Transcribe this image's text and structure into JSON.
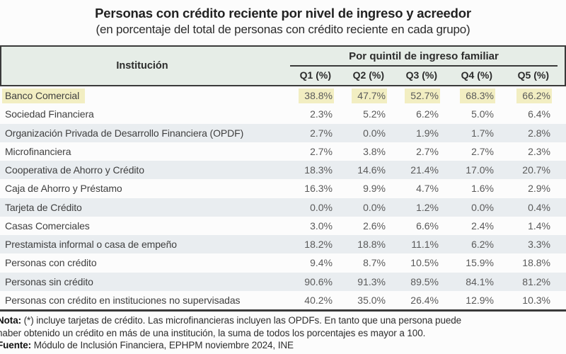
{
  "title": "Personas con crédito reciente por nivel de ingreso y acreedor",
  "subtitle": "(en porcentaje del total de personas con crédito reciente en cada grupo)",
  "table": {
    "institution_header": "Institución",
    "group_header": "Por quintil de ingreso familiar",
    "columns": [
      "Q1 (%)",
      "Q2 (%)",
      "Q3 (%)",
      "Q4 (%)",
      "Q5 (%)"
    ],
    "rows": [
      {
        "label": "Banco Comercial",
        "values": [
          "38.8%",
          "47.7%",
          "52.7%",
          "68.3%",
          "66.2%"
        ],
        "highlighted": true,
        "striped": false
      },
      {
        "label": "Sociedad Financiera",
        "values": [
          "2.3%",
          "5.2%",
          "6.2%",
          "5.0%",
          "6.4%"
        ],
        "highlighted": false,
        "striped": false
      },
      {
        "label": "Organización Privada de Desarrollo Financiera (OPDF)",
        "values": [
          "2.7%",
          "0.0%",
          "1.9%",
          "1.7%",
          "2.8%"
        ],
        "highlighted": false,
        "striped": true
      },
      {
        "label": "Microfinanciera",
        "values": [
          "2.7%",
          "3.8%",
          "2.7%",
          "2.7%",
          "2.3%"
        ],
        "highlighted": false,
        "striped": false
      },
      {
        "label": "Cooperativa de Ahorro y Crédito",
        "values": [
          "18.3%",
          "14.6%",
          "21.4%",
          "17.0%",
          "20.7%"
        ],
        "highlighted": false,
        "striped": true
      },
      {
        "label": "Caja de Ahorro y Préstamo",
        "values": [
          "16.3%",
          "9.9%",
          "4.7%",
          "1.6%",
          "2.9%"
        ],
        "highlighted": false,
        "striped": false
      },
      {
        "label": "Tarjeta de Crédito",
        "values": [
          "0.0%",
          "0.0%",
          "1.2%",
          "0.0%",
          "0.4%"
        ],
        "highlighted": false,
        "striped": true
      },
      {
        "label": "Casas Comerciales",
        "values": [
          "3.0%",
          "2.6%",
          "6.6%",
          "2.4%",
          "1.4%"
        ],
        "highlighted": false,
        "striped": false
      },
      {
        "label": "Prestamista informal o casa de empeño",
        "values": [
          "18.2%",
          "18.8%",
          "11.1%",
          "6.2%",
          "3.3%"
        ],
        "highlighted": false,
        "striped": true
      },
      {
        "label": "Personas con crédito",
        "values": [
          "9.4%",
          "8.7%",
          "10.5%",
          "15.9%",
          "18.8%"
        ],
        "highlighted": false,
        "striped": false
      },
      {
        "label": "Personas sin crédito",
        "values": [
          "90.6%",
          "91.3%",
          "89.5%",
          "84.1%",
          "81.2%"
        ],
        "highlighted": false,
        "striped": true
      },
      {
        "label": "Personas con crédito en instituciones no supervisadas",
        "values": [
          "40.2%",
          "35.0%",
          "26.4%",
          "12.9%",
          "10.3%"
        ],
        "highlighted": false,
        "striped": false
      }
    ]
  },
  "notes": {
    "nota_label": "Nota:",
    "nota_line1_rest": " (*) incluye tarjetas de crédito. Las microfinancieras incluyen las OPDFs. En tanto que una persona puede",
    "nota_line2": "haber obtenido un crédito en más de una institución, la suma de todos los porcentajes es mayor a 100.",
    "fuente_label": "Fuente:",
    "fuente_rest": " Módulo de Inclusión Financiera, EPHPM noviembre 2024, INE"
  },
  "colors": {
    "header_bg": "#e6ede7",
    "stripe_bg": "#e9edf0",
    "highlight_bg": "#f2eec2",
    "border_dark": "#3a3a3a",
    "page_bg": "#fcfcfc"
  },
  "chart_data": {
    "type": "table",
    "title": "Personas con crédito reciente por nivel de ingreso y acreedor",
    "subtitle": "(en porcentaje del total de personas con crédito reciente en cada grupo)",
    "row_header": "Institución",
    "column_group": "Por quintil de ingreso familiar",
    "columns": [
      "Q1 (%)",
      "Q2 (%)",
      "Q3 (%)",
      "Q4 (%)",
      "Q5 (%)"
    ],
    "rows": [
      {
        "label": "Banco Comercial",
        "values": [
          38.8,
          47.7,
          52.7,
          68.3,
          66.2
        ]
      },
      {
        "label": "Sociedad Financiera",
        "values": [
          2.3,
          5.2,
          6.2,
          5.0,
          6.4
        ]
      },
      {
        "label": "Organización Privada de Desarrollo Financiera (OPDF)",
        "values": [
          2.7,
          0.0,
          1.9,
          1.7,
          2.8
        ]
      },
      {
        "label": "Microfinanciera",
        "values": [
          2.7,
          3.8,
          2.7,
          2.7,
          2.3
        ]
      },
      {
        "label": "Cooperativa de Ahorro y Crédito",
        "values": [
          18.3,
          14.6,
          21.4,
          17.0,
          20.7
        ]
      },
      {
        "label": "Caja de Ahorro y Préstamo",
        "values": [
          16.3,
          9.9,
          4.7,
          1.6,
          2.9
        ]
      },
      {
        "label": "Tarjeta de Crédito",
        "values": [
          0.0,
          0.0,
          1.2,
          0.0,
          0.4
        ]
      },
      {
        "label": "Casas Comerciales",
        "values": [
          3.0,
          2.6,
          6.6,
          2.4,
          1.4
        ]
      },
      {
        "label": "Prestamista informal o casa de empeño",
        "values": [
          18.2,
          18.8,
          11.1,
          6.2,
          3.3
        ]
      },
      {
        "label": "Personas con crédito",
        "values": [
          9.4,
          8.7,
          10.5,
          15.9,
          18.8
        ]
      },
      {
        "label": "Personas sin crédito",
        "values": [
          90.6,
          91.3,
          89.5,
          84.1,
          81.2
        ]
      },
      {
        "label": "Personas con crédito en instituciones no supervisadas",
        "values": [
          40.2,
          35.0,
          26.4,
          12.9,
          10.3
        ]
      }
    ],
    "annotations": [
      "Nota: (*) incluye tarjetas de crédito. Las microfinancieras incluyen las OPDFs. En tanto que una persona puede haber obtenido un crédito en más de una institución, la suma de todos los porcentajes es mayor a 100.",
      "Fuente: Módulo de Inclusión Financiera, EPHPM noviembre 2024, INE"
    ],
    "highlighted_row": "Banco Comercial"
  }
}
